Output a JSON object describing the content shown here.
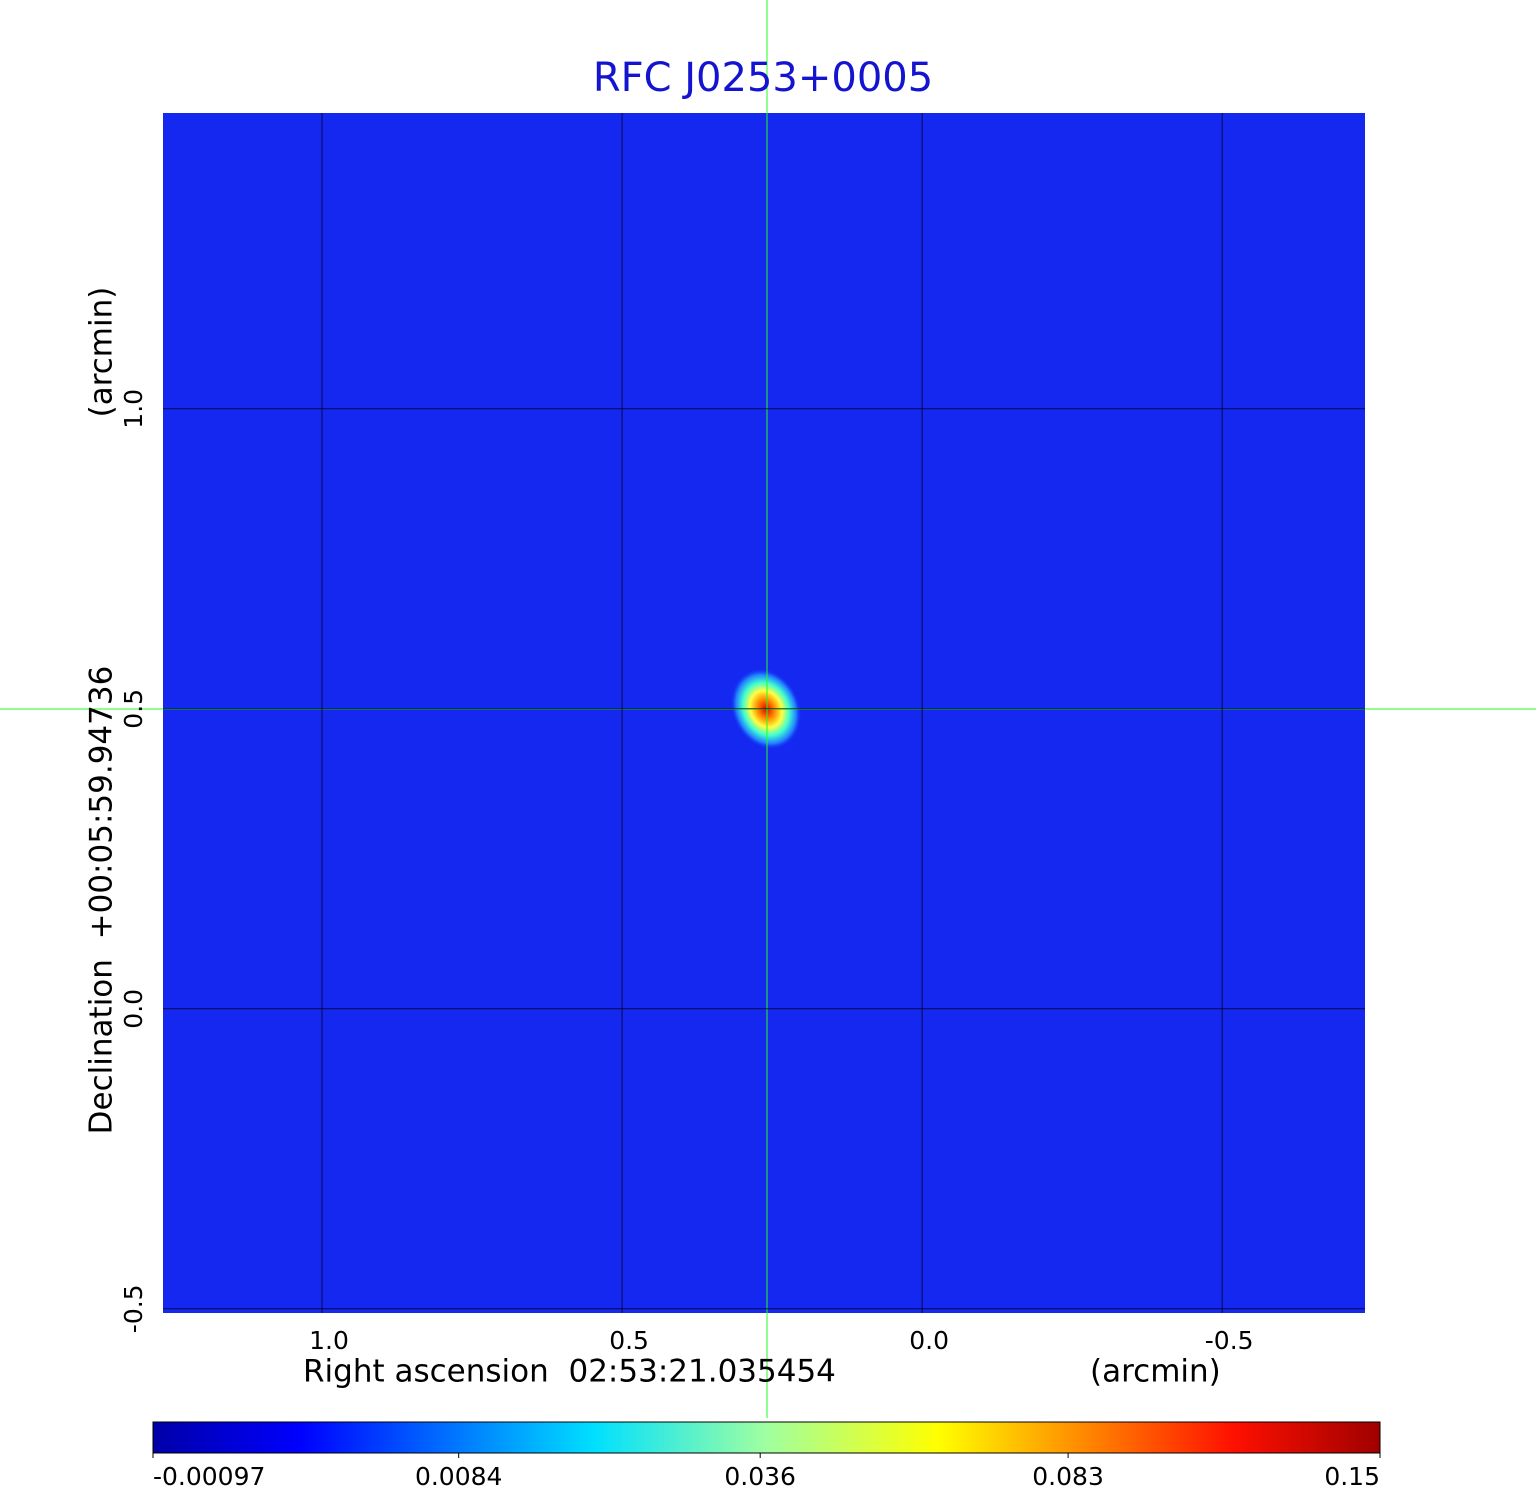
{
  "chart_data": {
    "type": "image",
    "title": "RFC J0253+0005",
    "xlabel": "Right ascension  02:53:21.035454",
    "xunit": "(arcmin)",
    "ylabel": "Declination  +00:05:59.94736",
    "yunit": "(arcmin)",
    "xlim": [
      1.265,
      -0.738
    ],
    "ylim": [
      -0.507,
      1.493
    ],
    "xticks": [
      {
        "value": 1,
        "label": "1.0"
      },
      0.5,
      {
        "value": 0,
        "label": "0.0"
      },
      -0.5
    ],
    "yticks": [
      -0.5,
      {
        "value": 0,
        "label": "0.0"
      },
      0.5,
      {
        "value": 1,
        "label": "1.0"
      }
    ],
    "grid": true,
    "colorbar": {
      "scale": "sqrt",
      "clim": [
        -0.00097,
        0.15
      ],
      "ticks": [
        -0.00097,
        0.0084,
        0.036,
        0.083,
        0.15
      ]
    }
  }
}
